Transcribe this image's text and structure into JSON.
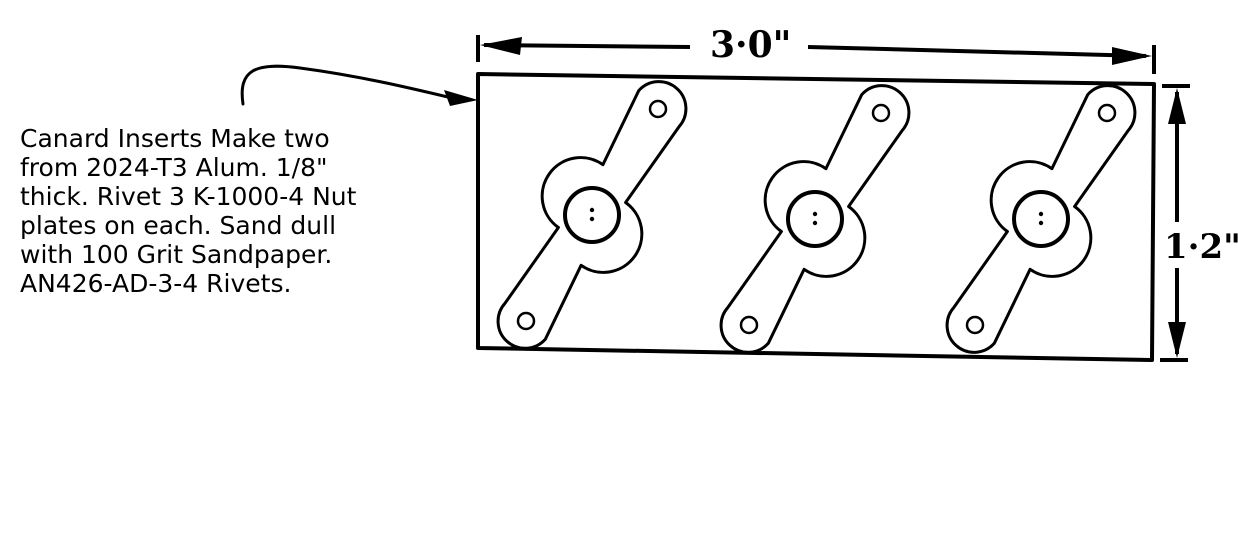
{
  "note": {
    "lines": [
      "Canard Inserts Make two",
      "from 2024-T3 Alum. 1/8\"",
      "thick. Rivet 3 K-1000-4 Nut",
      "plates on each. Sand dull",
      "with 100 Grit Sandpaper.",
      "AN426-AD-3-4 Rivets."
    ]
  },
  "dimensions": {
    "width_label": "3·0\"",
    "height_label": "1·2\""
  },
  "part": {
    "nutplate_count": 3
  },
  "colors": {
    "ink": "#000000",
    "paper": "#ffffff"
  }
}
